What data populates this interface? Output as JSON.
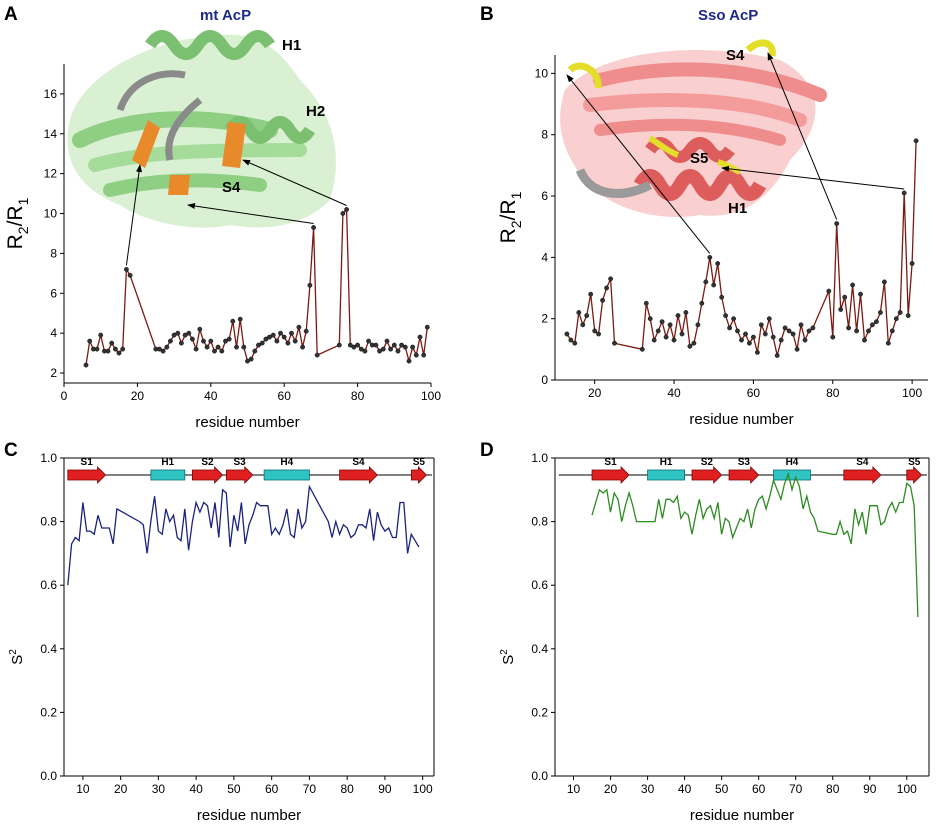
{
  "panels": [
    {
      "letter": "A",
      "title": "mt AcP",
      "structure_labels": [
        "H1",
        "H2",
        "S4"
      ],
      "chart_data": {
        "type": "line",
        "xlabel": "residue number",
        "ylabel": "R2/R1",
        "xlim": [
          0,
          100
        ],
        "ylim": [
          1.5,
          17.5
        ],
        "xticks": [
          0,
          20,
          40,
          60,
          80,
          100
        ],
        "yticks": [
          2,
          4,
          6,
          8,
          10,
          12,
          14,
          16
        ],
        "line_color": "#7a1a12",
        "marker": "dot",
        "series": [
          {
            "name": "mt AcP R2/R1",
            "x": [
              6,
              7,
              8,
              9,
              10,
              11,
              12,
              13,
              14,
              15,
              16,
              17,
              18,
              25,
              26,
              27,
              28,
              29,
              30,
              31,
              32,
              33,
              34,
              35,
              36,
              37,
              38,
              39,
              40,
              41,
              42,
              43,
              44,
              45,
              46,
              47,
              48,
              49,
              50,
              51,
              52,
              53,
              54,
              55,
              56,
              57,
              58,
              59,
              60,
              61,
              62,
              63,
              64,
              65,
              66,
              67,
              68,
              69,
              75,
              76,
              77,
              78,
              79,
              80,
              81,
              82,
              83,
              84,
              85,
              86,
              87,
              88,
              89,
              90,
              91,
              92,
              93,
              94,
              95,
              96,
              97,
              98,
              99
            ],
            "y": [
              2.4,
              3.6,
              3.2,
              3.2,
              3.9,
              3.1,
              3.1,
              3.5,
              3.2,
              3.0,
              3.2,
              7.2,
              6.9,
              3.2,
              3.2,
              3.1,
              3.3,
              3.6,
              3.9,
              4.0,
              3.5,
              3.9,
              4.0,
              3.7,
              3.2,
              4.2,
              3.6,
              3.3,
              3.6,
              3.1,
              3.3,
              3.1,
              3.6,
              3.7,
              4.6,
              3.3,
              4.7,
              3.3,
              2.6,
              2.7,
              3.1,
              3.4,
              3.5,
              3.7,
              3.8,
              3.9,
              3.6,
              4.0,
              3.8,
              3.5,
              4.0,
              3.6,
              4.3,
              3.3,
              4.1,
              6.4,
              9.3,
              2.9,
              3.4,
              10.0,
              10.2,
              3.4,
              3.3,
              3.4,
              3.2,
              3.1,
              3.6,
              3.4,
              3.4,
              3.1,
              3.2,
              3.6,
              3.2,
              3.4,
              3.1,
              3.4,
              3.3,
              2.6,
              3.3,
              2.9,
              3.8,
              2.9,
              4.3
            ]
          }
        ],
        "arrows_from_points": [
          {
            "x": 17,
            "y": 7.2,
            "to": "structure"
          },
          {
            "x": 68,
            "y": 9.3,
            "to": "structure"
          },
          {
            "x": 77,
            "y": 10.2,
            "to": "structure"
          }
        ]
      }
    },
    {
      "letter": "B",
      "title": "Sso AcP",
      "structure_labels": [
        "S4",
        "S5",
        "H1"
      ],
      "chart_data": {
        "type": "line",
        "xlabel": "residue number",
        "ylabel": "R2/R1",
        "xlim": [
          10,
          104
        ],
        "ylim": [
          0,
          10.6
        ],
        "xticks": [
          20,
          40,
          60,
          80,
          100
        ],
        "yticks": [
          0,
          2,
          4,
          6,
          8,
          10
        ],
        "line_color": "#7a1a12",
        "marker": "dot",
        "series": [
          {
            "name": "Sso AcP R2/R1",
            "x": [
              13,
              14,
              15,
              16,
              17,
              18,
              19,
              20,
              21,
              22,
              23,
              24,
              25,
              32,
              33,
              34,
              35,
              36,
              37,
              38,
              39,
              40,
              41,
              42,
              43,
              44,
              45,
              46,
              47,
              48,
              49,
              50,
              51,
              52,
              53,
              54,
              55,
              56,
              57,
              58,
              59,
              60,
              61,
              62,
              63,
              64,
              65,
              66,
              67,
              68,
              69,
              70,
              71,
              72,
              73,
              74,
              75,
              79,
              80,
              81,
              82,
              83,
              84,
              85,
              86,
              87,
              88,
              89,
              90,
              91,
              92,
              93,
              94,
              95,
              96,
              97,
              98,
              99,
              100,
              101
            ],
            "y": [
              1.5,
              1.3,
              1.2,
              2.2,
              1.8,
              2.1,
              2.8,
              1.6,
              1.5,
              2.6,
              3.0,
              3.3,
              1.2,
              1.0,
              2.5,
              2.0,
              1.3,
              1.6,
              1.9,
              1.4,
              1.8,
              1.3,
              2.1,
              1.5,
              2.2,
              1.1,
              1.2,
              1.8,
              2.5,
              3.2,
              4.0,
              3.1,
              3.8,
              2.7,
              2.1,
              1.7,
              2.0,
              1.6,
              1.3,
              1.5,
              1.2,
              1.4,
              0.9,
              1.8,
              1.5,
              2.0,
              1.4,
              0.8,
              1.3,
              1.7,
              1.6,
              1.5,
              1.0,
              1.8,
              1.3,
              1.6,
              1.7,
              2.9,
              1.4,
              5.1,
              2.3,
              2.7,
              1.7,
              3.1,
              1.6,
              2.8,
              1.3,
              1.6,
              1.8,
              1.9,
              2.2,
              3.2,
              1.2,
              1.6,
              2.0,
              2.2,
              6.1,
              2.1,
              3.8,
              7.8
            ]
          }
        ],
        "arrows_from_points": [
          {
            "x": 49,
            "y": 4.0,
            "to": "structure"
          },
          {
            "x": 81,
            "y": 5.1,
            "to": "structure"
          },
          {
            "x": 98,
            "y": 6.1,
            "to": "structure"
          }
        ]
      }
    },
    {
      "letter": "C",
      "chart_data": {
        "type": "line",
        "xlabel": "residue number",
        "ylabel": "S2",
        "xlim": [
          5,
          103
        ],
        "ylim": [
          0.0,
          1.0
        ],
        "xticks": [
          10,
          20,
          30,
          40,
          50,
          60,
          70,
          80,
          90,
          100
        ],
        "yticks": [
          "0.0",
          "0.2",
          "0.4",
          "0.6",
          "0.8",
          "1.0"
        ],
        "line_color": "#1a237e",
        "secondary_structure": [
          {
            "label": "S1",
            "type": "strand",
            "from": 6,
            "to": 16
          },
          {
            "label": "H1",
            "type": "helix",
            "from": 28,
            "to": 37
          },
          {
            "label": "S2",
            "type": "strand",
            "from": 39,
            "to": 47
          },
          {
            "label": "S3",
            "type": "strand",
            "from": 48,
            "to": 55
          },
          {
            "label": "H4",
            "type": "helix",
            "from": 58,
            "to": 70
          },
          {
            "label": "S4",
            "type": "strand",
            "from": 78,
            "to": 88
          },
          {
            "label": "S5",
            "type": "strand",
            "from": 97,
            "to": 101
          }
        ],
        "series": [
          {
            "name": "mt AcP S2",
            "x": [
              6,
              7,
              8,
              9,
              10,
              11,
              12,
              13,
              14,
              15,
              16,
              17,
              18,
              19,
              25,
              26,
              27,
              28,
              29,
              30,
              31,
              32,
              33,
              34,
              35,
              36,
              37,
              38,
              39,
              40,
              41,
              42,
              43,
              44,
              45,
              46,
              47,
              48,
              49,
              50,
              51,
              52,
              53,
              54,
              55,
              56,
              57,
              58,
              59,
              60,
              61,
              62,
              63,
              64,
              65,
              66,
              67,
              68,
              69,
              70,
              75,
              76,
              77,
              78,
              79,
              80,
              81,
              82,
              83,
              84,
              85,
              86,
              87,
              88,
              89,
              90,
              91,
              92,
              93,
              94,
              95,
              96,
              97,
              98,
              99
            ],
            "y": [
              0.6,
              0.73,
              0.75,
              0.74,
              0.86,
              0.77,
              0.77,
              0.76,
              0.82,
              0.78,
              0.78,
              0.78,
              0.73,
              0.84,
              0.8,
              0.79,
              0.7,
              0.8,
              0.88,
              0.77,
              0.76,
              0.84,
              0.8,
              0.82,
              0.75,
              0.74,
              0.84,
              0.71,
              0.8,
              0.86,
              0.83,
              0.86,
              0.85,
              0.78,
              0.86,
              0.75,
              0.9,
              0.89,
              0.72,
              0.82,
              0.77,
              0.86,
              0.73,
              0.79,
              0.82,
              0.86,
              0.85,
              0.85,
              0.85,
              0.76,
              0.78,
              0.76,
              0.79,
              0.84,
              0.76,
              0.75,
              0.84,
              0.78,
              0.8,
              0.91,
              0.8,
              0.75,
              0.8,
              0.76,
              0.79,
              0.78,
              0.75,
              0.76,
              0.79,
              0.79,
              0.78,
              0.84,
              0.74,
              0.83,
              0.79,
              0.77,
              0.78,
              0.75,
              0.75,
              0.86,
              0.86,
              0.7,
              0.76,
              0.74,
              0.72
            ]
          }
        ]
      }
    },
    {
      "letter": "D",
      "chart_data": {
        "type": "line",
        "xlabel": "residue number",
        "ylabel": "S2",
        "xlim": [
          5,
          106
        ],
        "ylim": [
          0.0,
          1.0
        ],
        "xticks": [
          10,
          20,
          30,
          40,
          50,
          60,
          70,
          80,
          90,
          100
        ],
        "yticks": [
          "0.0",
          "0.2",
          "0.4",
          "0.6",
          "0.8",
          "1.0"
        ],
        "line_color": "#2e8b22",
        "secondary_structure": [
          {
            "label": "S1",
            "type": "strand",
            "from": 15,
            "to": 25
          },
          {
            "label": "H1",
            "type": "helix",
            "from": 30,
            "to": 40
          },
          {
            "label": "S2",
            "type": "strand",
            "from": 42,
            "to": 50
          },
          {
            "label": "S3",
            "type": "strand",
            "from": 52,
            "to": 60
          },
          {
            "label": "H4",
            "type": "helix",
            "from": 64,
            "to": 74
          },
          {
            "label": "S4",
            "type": "strand",
            "from": 83,
            "to": 93
          },
          {
            "label": "S5",
            "type": "strand",
            "from": 100,
            "to": 104
          }
        ],
        "series": [
          {
            "name": "Sso AcP S2",
            "x": [
              15,
              16,
              17,
              18,
              19,
              20,
              21,
              22,
              23,
              24,
              25,
              26,
              27,
              30,
              31,
              32,
              33,
              34,
              35,
              36,
              37,
              38,
              39,
              40,
              41,
              42,
              43,
              44,
              45,
              46,
              47,
              48,
              49,
              50,
              51,
              52,
              53,
              54,
              55,
              56,
              57,
              58,
              59,
              60,
              61,
              62,
              63,
              64,
              65,
              66,
              67,
              68,
              69,
              70,
              71,
              72,
              73,
              74,
              75,
              76,
              80,
              81,
              82,
              83,
              84,
              85,
              86,
              87,
              88,
              89,
              90,
              91,
              92,
              93,
              94,
              95,
              96,
              97,
              98,
              99,
              100,
              101,
              102,
              103
            ],
            "y": [
              0.82,
              0.86,
              0.9,
              0.89,
              0.9,
              0.83,
              0.89,
              0.87,
              0.8,
              0.85,
              0.89,
              0.85,
              0.8,
              0.8,
              0.8,
              0.8,
              0.87,
              0.81,
              0.87,
              0.87,
              0.86,
              0.88,
              0.81,
              0.83,
              0.82,
              0.76,
              0.82,
              0.87,
              0.81,
              0.84,
              0.85,
              0.81,
              0.86,
              0.76,
              0.81,
              0.8,
              0.75,
              0.78,
              0.81,
              0.8,
              0.84,
              0.78,
              0.84,
              0.87,
              0.88,
              0.84,
              0.88,
              0.93,
              0.9,
              0.87,
              0.92,
              0.95,
              0.9,
              0.94,
              0.91,
              0.84,
              0.88,
              0.83,
              0.81,
              0.77,
              0.76,
              0.76,
              0.8,
              0.76,
              0.77,
              0.73,
              0.84,
              0.79,
              0.83,
              0.76,
              0.85,
              0.85,
              0.85,
              0.79,
              0.8,
              0.84,
              0.86,
              0.83,
              0.86,
              0.86,
              0.92,
              0.91,
              0.85,
              0.5
            ]
          }
        ]
      }
    }
  ]
}
